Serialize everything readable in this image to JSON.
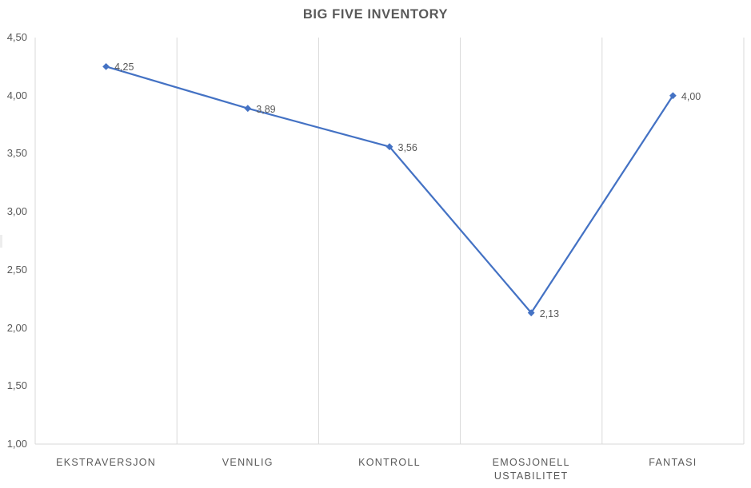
{
  "chart_data": {
    "type": "line",
    "title": "BIG FIVE INVENTORY",
    "categories": [
      "EKSTRAVERSJON",
      "VENNLIG",
      "KONTROLL",
      "EMOSJONELL\nUSTABILITET",
      "FANTASI"
    ],
    "values": [
      4.25,
      3.89,
      3.56,
      2.13,
      4.0
    ],
    "data_labels": [
      "4,25",
      "3,89",
      "3,56",
      "2,13",
      "4,00"
    ],
    "xlabel": "",
    "ylabel": "",
    "ylim": [
      1.0,
      4.5
    ],
    "ytick_values": [
      4.5,
      4.0,
      3.5,
      3.0,
      2.5,
      2.0,
      1.5,
      1.0
    ],
    "ytick_labels": [
      "4,50",
      "4,00",
      "3,50",
      "3,00",
      "2,50",
      "2,00",
      "1,50",
      "1,00"
    ],
    "grid": "vertical-only",
    "legend": "none",
    "marker": "diamond",
    "series_color": "#4472C4",
    "gridline_color": "#D9D9D9",
    "axis_line_color": "#D9D9D9",
    "text_color": "#595959",
    "title_color": "#595959",
    "data_label_color": "#595959"
  }
}
